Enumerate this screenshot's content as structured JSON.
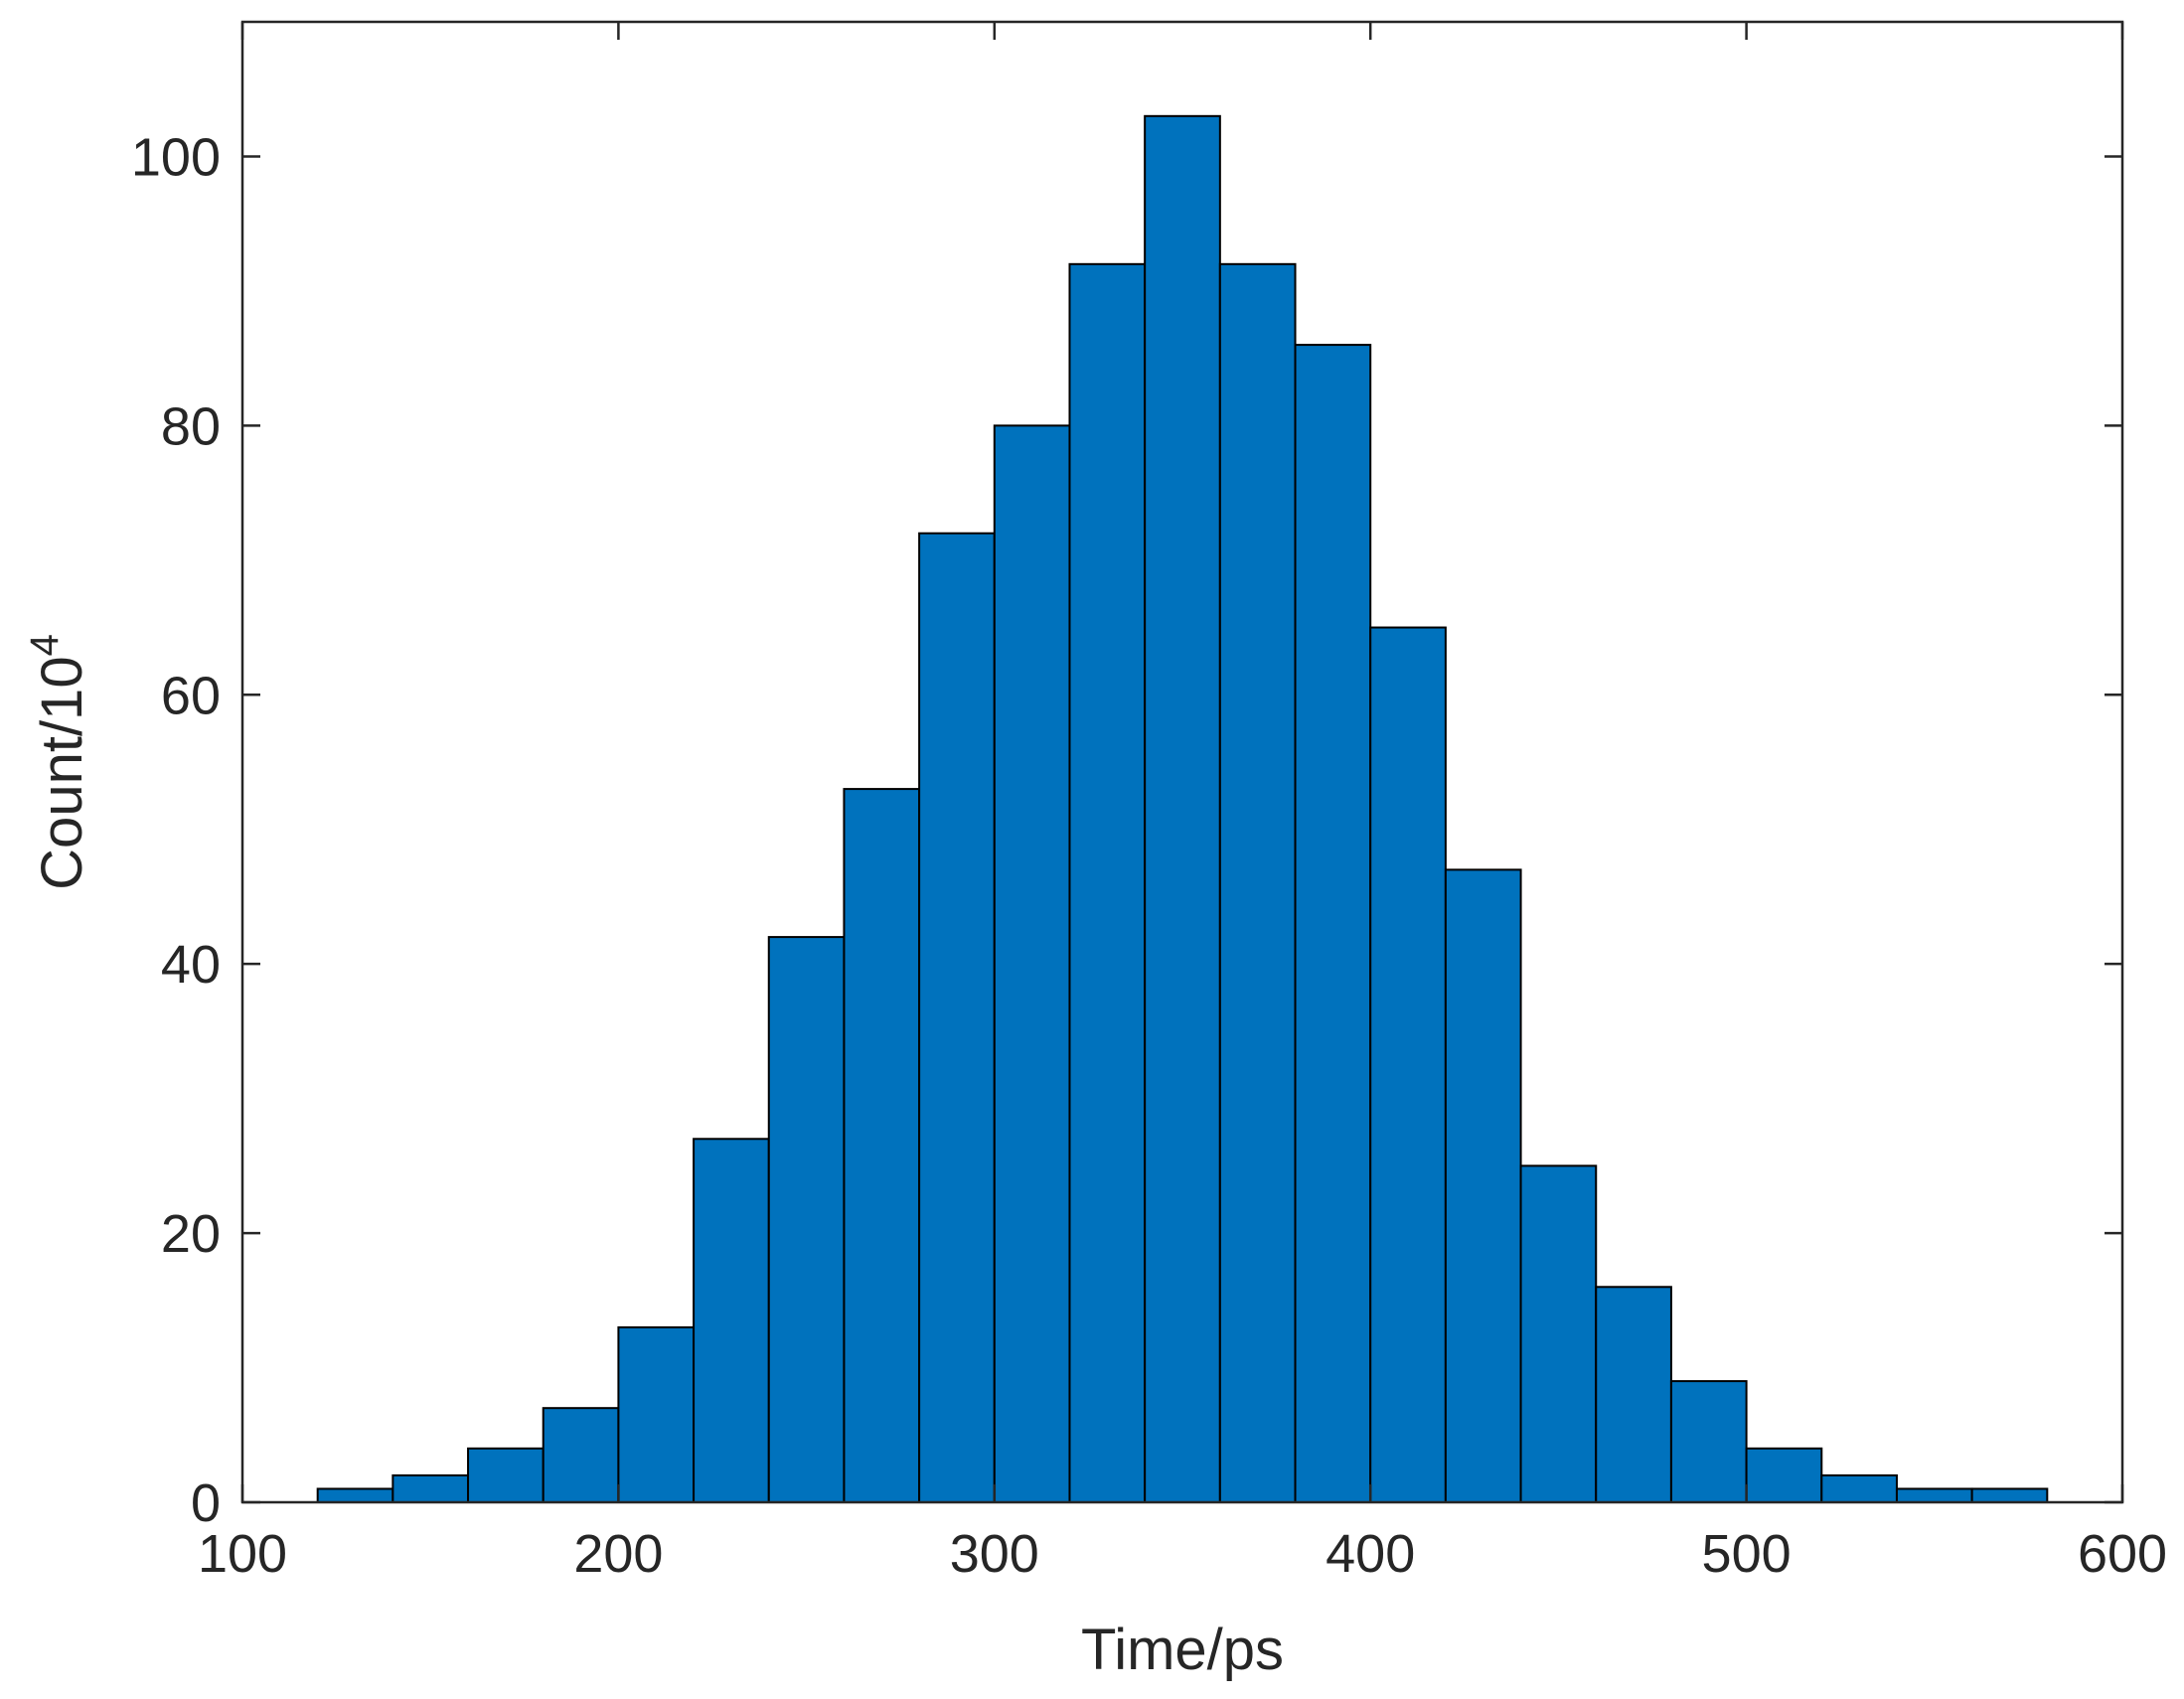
{
  "chart_data": {
    "type": "bar",
    "bin_edges": [
      120,
      140,
      160,
      180,
      200,
      220,
      240,
      260,
      280,
      300,
      320,
      340,
      360,
      380,
      400,
      420,
      440,
      460,
      480,
      500,
      520,
      540,
      560,
      580
    ],
    "values": [
      1,
      2,
      4,
      7,
      13,
      27,
      42,
      53,
      72,
      80,
      92,
      103,
      92,
      86,
      65,
      47,
      25,
      16,
      9,
      4,
      2,
      1,
      1
    ],
    "xlabel": "Time/ps",
    "ylabel_base": "Count/10",
    "ylabel_exponent": "4",
    "xlim": [
      100,
      600
    ],
    "ylim": [
      0,
      110
    ],
    "xticks": [
      100,
      200,
      300,
      400,
      500,
      600
    ],
    "yticks": [
      0,
      20,
      40,
      60,
      80,
      100
    ],
    "grid": false,
    "bar_color": "#0072BD",
    "edge_color": "#000000",
    "axis_color": "#262626"
  }
}
